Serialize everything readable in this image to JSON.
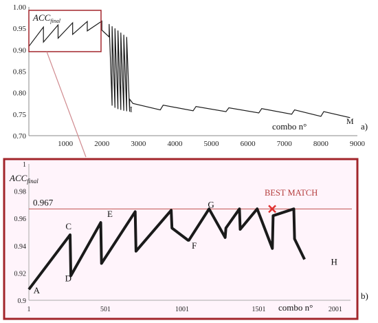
{
  "panel_labels": {
    "a": "a)",
    "b": "b)"
  },
  "colors": {
    "zoom_frame": "#a2252b",
    "panel_b_background": "#fff4fb",
    "reference_line": "#c0504d",
    "best_match_marker": "#e03030",
    "best_match_text": "#b43c3c",
    "series": "#1a1a1a"
  },
  "chart_data": [
    {
      "id": "a",
      "type": "line",
      "ylabel_main": "ACC",
      "ylabel_sub": "final",
      "xlabel": "combo n°",
      "xlim": [
        0,
        9000
      ],
      "ylim": [
        0.7,
        1.0
      ],
      "x_ticks": [
        "1000",
        "2000",
        "3000",
        "4000",
        "5000",
        "6000",
        "7000",
        "8000",
        "9000"
      ],
      "x_tick_values": [
        1000,
        2000,
        3000,
        4000,
        5000,
        6000,
        7000,
        8000,
        9000
      ],
      "y_ticks": [
        "0.70",
        "0.75",
        "0.80",
        "0.85",
        "0.90",
        "0.95",
        "1.00"
      ],
      "y_tick_values": [
        0.7,
        0.75,
        0.8,
        0.85,
        0.9,
        0.95,
        1.0
      ],
      "annotations": [
        {
          "text": "I",
          "x": 2800,
          "y": 0.755
        },
        {
          "text": "M",
          "x": 8800,
          "y": 0.727
        }
      ],
      "series": [
        {
          "x": [
            0,
            400,
            400,
            800,
            800,
            1200,
            1200,
            1600,
            1600,
            2000,
            2000,
            2200,
            2200,
            2280,
            2280,
            2360,
            2360,
            2440,
            2440,
            2520,
            2520,
            2600,
            2600,
            2680,
            2680,
            2760,
            2760,
            2850,
            3600,
            3680,
            4500,
            4580,
            5400,
            5480,
            6300,
            6380,
            7200,
            7280,
            8000,
            8080,
            8800
          ],
          "y": [
            0.908,
            0.953,
            0.918,
            0.958,
            0.927,
            0.963,
            0.936,
            0.966,
            0.944,
            0.967,
            0.946,
            0.93,
            0.96,
            0.77,
            0.955,
            0.765,
            0.95,
            0.762,
            0.945,
            0.76,
            0.94,
            0.758,
            0.935,
            0.757,
            0.93,
            0.756,
            0.785,
            0.775,
            0.76,
            0.771,
            0.758,
            0.768,
            0.756,
            0.765,
            0.753,
            0.763,
            0.75,
            0.76,
            0.745,
            0.756,
            0.742
          ]
        }
      ]
    },
    {
      "id": "b",
      "type": "line",
      "ylabel_main": "ACC",
      "ylabel_sub": "final",
      "xlabel": "combo n°",
      "xlim": [
        1,
        2100
      ],
      "ylim": [
        0.9,
        1.0
      ],
      "x_ticks": [
        "1",
        "501",
        "1001",
        "1501",
        "2001"
      ],
      "x_tick_values": [
        1,
        501,
        1001,
        1501,
        2001
      ],
      "y_ticks": [
        "0.9",
        "0.92",
        "0.94",
        "0.96",
        "0.98",
        "1"
      ],
      "y_tick_values": [
        0.9,
        0.92,
        0.94,
        0.96,
        0.98,
        1.0
      ],
      "reference_line": {
        "y": 0.967,
        "label": "0.967"
      },
      "best_match": {
        "label": "BEST MATCH",
        "x": 1589,
        "y": 0.967
      },
      "annotations": [
        {
          "text": "A",
          "x": 52,
          "y": 0.905
        },
        {
          "text": "D",
          "x": 258,
          "y": 0.914
        },
        {
          "text": "C",
          "x": 260,
          "y": 0.952
        },
        {
          "text": "E",
          "x": 530,
          "y": 0.961
        },
        {
          "text": "F",
          "x": 1080,
          "y": 0.938
        },
        {
          "text": "G",
          "x": 1190,
          "y": 0.968
        },
        {
          "text": "H",
          "x": 1993,
          "y": 0.926
        }
      ],
      "series": [
        {
          "x": [
            1,
            270,
            275,
            470,
            475,
            695,
            700,
            930,
            935,
            1040,
            1045,
            1177,
            1282,
            1287,
            1375,
            1380,
            1491,
            1590,
            1595,
            1730,
            1735,
            1800
          ],
          "y": [
            0.908,
            0.948,
            0.918,
            0.957,
            0.927,
            0.965,
            0.936,
            0.966,
            0.953,
            0.944,
            0.944,
            0.967,
            0.946,
            0.953,
            0.967,
            0.952,
            0.967,
            0.938,
            0.962,
            0.967,
            0.945,
            0.93
          ]
        }
      ]
    }
  ]
}
